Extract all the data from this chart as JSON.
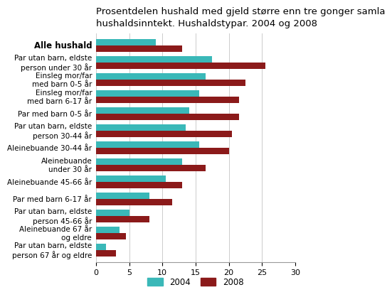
{
  "title_line1": "Prosentdelen hushald med gjeld større enn tre gonger samla",
  "title_line2": "hushaldsinntekt. Hushaldstypar. 2004 og 2008",
  "categories": [
    "Par utan barn, eldste\nperson 67 år og eldre",
    "Aleinebuande 67 år\nog eldre",
    "Par utan barn, eldste\nperson 45-66 år",
    "Par med barn 6-17 år",
    "Aleinebuande 45-66 år",
    "Aleinebuande\nunder 30 år",
    "Aleinebuande 30-44 år",
    "Par utan barn, eldste\nperson 30-44 år",
    "Par med barn 0-5 år",
    "Einsleg mor/far\nmed barn 6-17 år",
    "Einsleg mor/far\nmed barn 0-5 år",
    "Par utan barn, eldste\nperson under 30 år",
    "Alle hushald"
  ],
  "values_2004": [
    1.5,
    3.5,
    5.0,
    8.0,
    10.5,
    13.0,
    15.5,
    13.5,
    14.0,
    15.5,
    16.5,
    17.5,
    9.0
  ],
  "values_2008": [
    3.0,
    4.5,
    8.0,
    11.5,
    13.0,
    16.5,
    20.0,
    20.5,
    21.5,
    21.5,
    22.5,
    25.5,
    13.0
  ],
  "color_2004": "#3ab8b8",
  "color_2008": "#8b1a1a",
  "xlim": [
    0,
    30
  ],
  "xticks": [
    0,
    5,
    10,
    15,
    20,
    25,
    30
  ],
  "bar_height": 0.38,
  "legend_2004": "2004",
  "legend_2008": "2008",
  "title_fontsize": 9.5,
  "tick_fontsize": 8,
  "label_fontsize": 7.5,
  "alle_hushald_fontsize": 8.5
}
